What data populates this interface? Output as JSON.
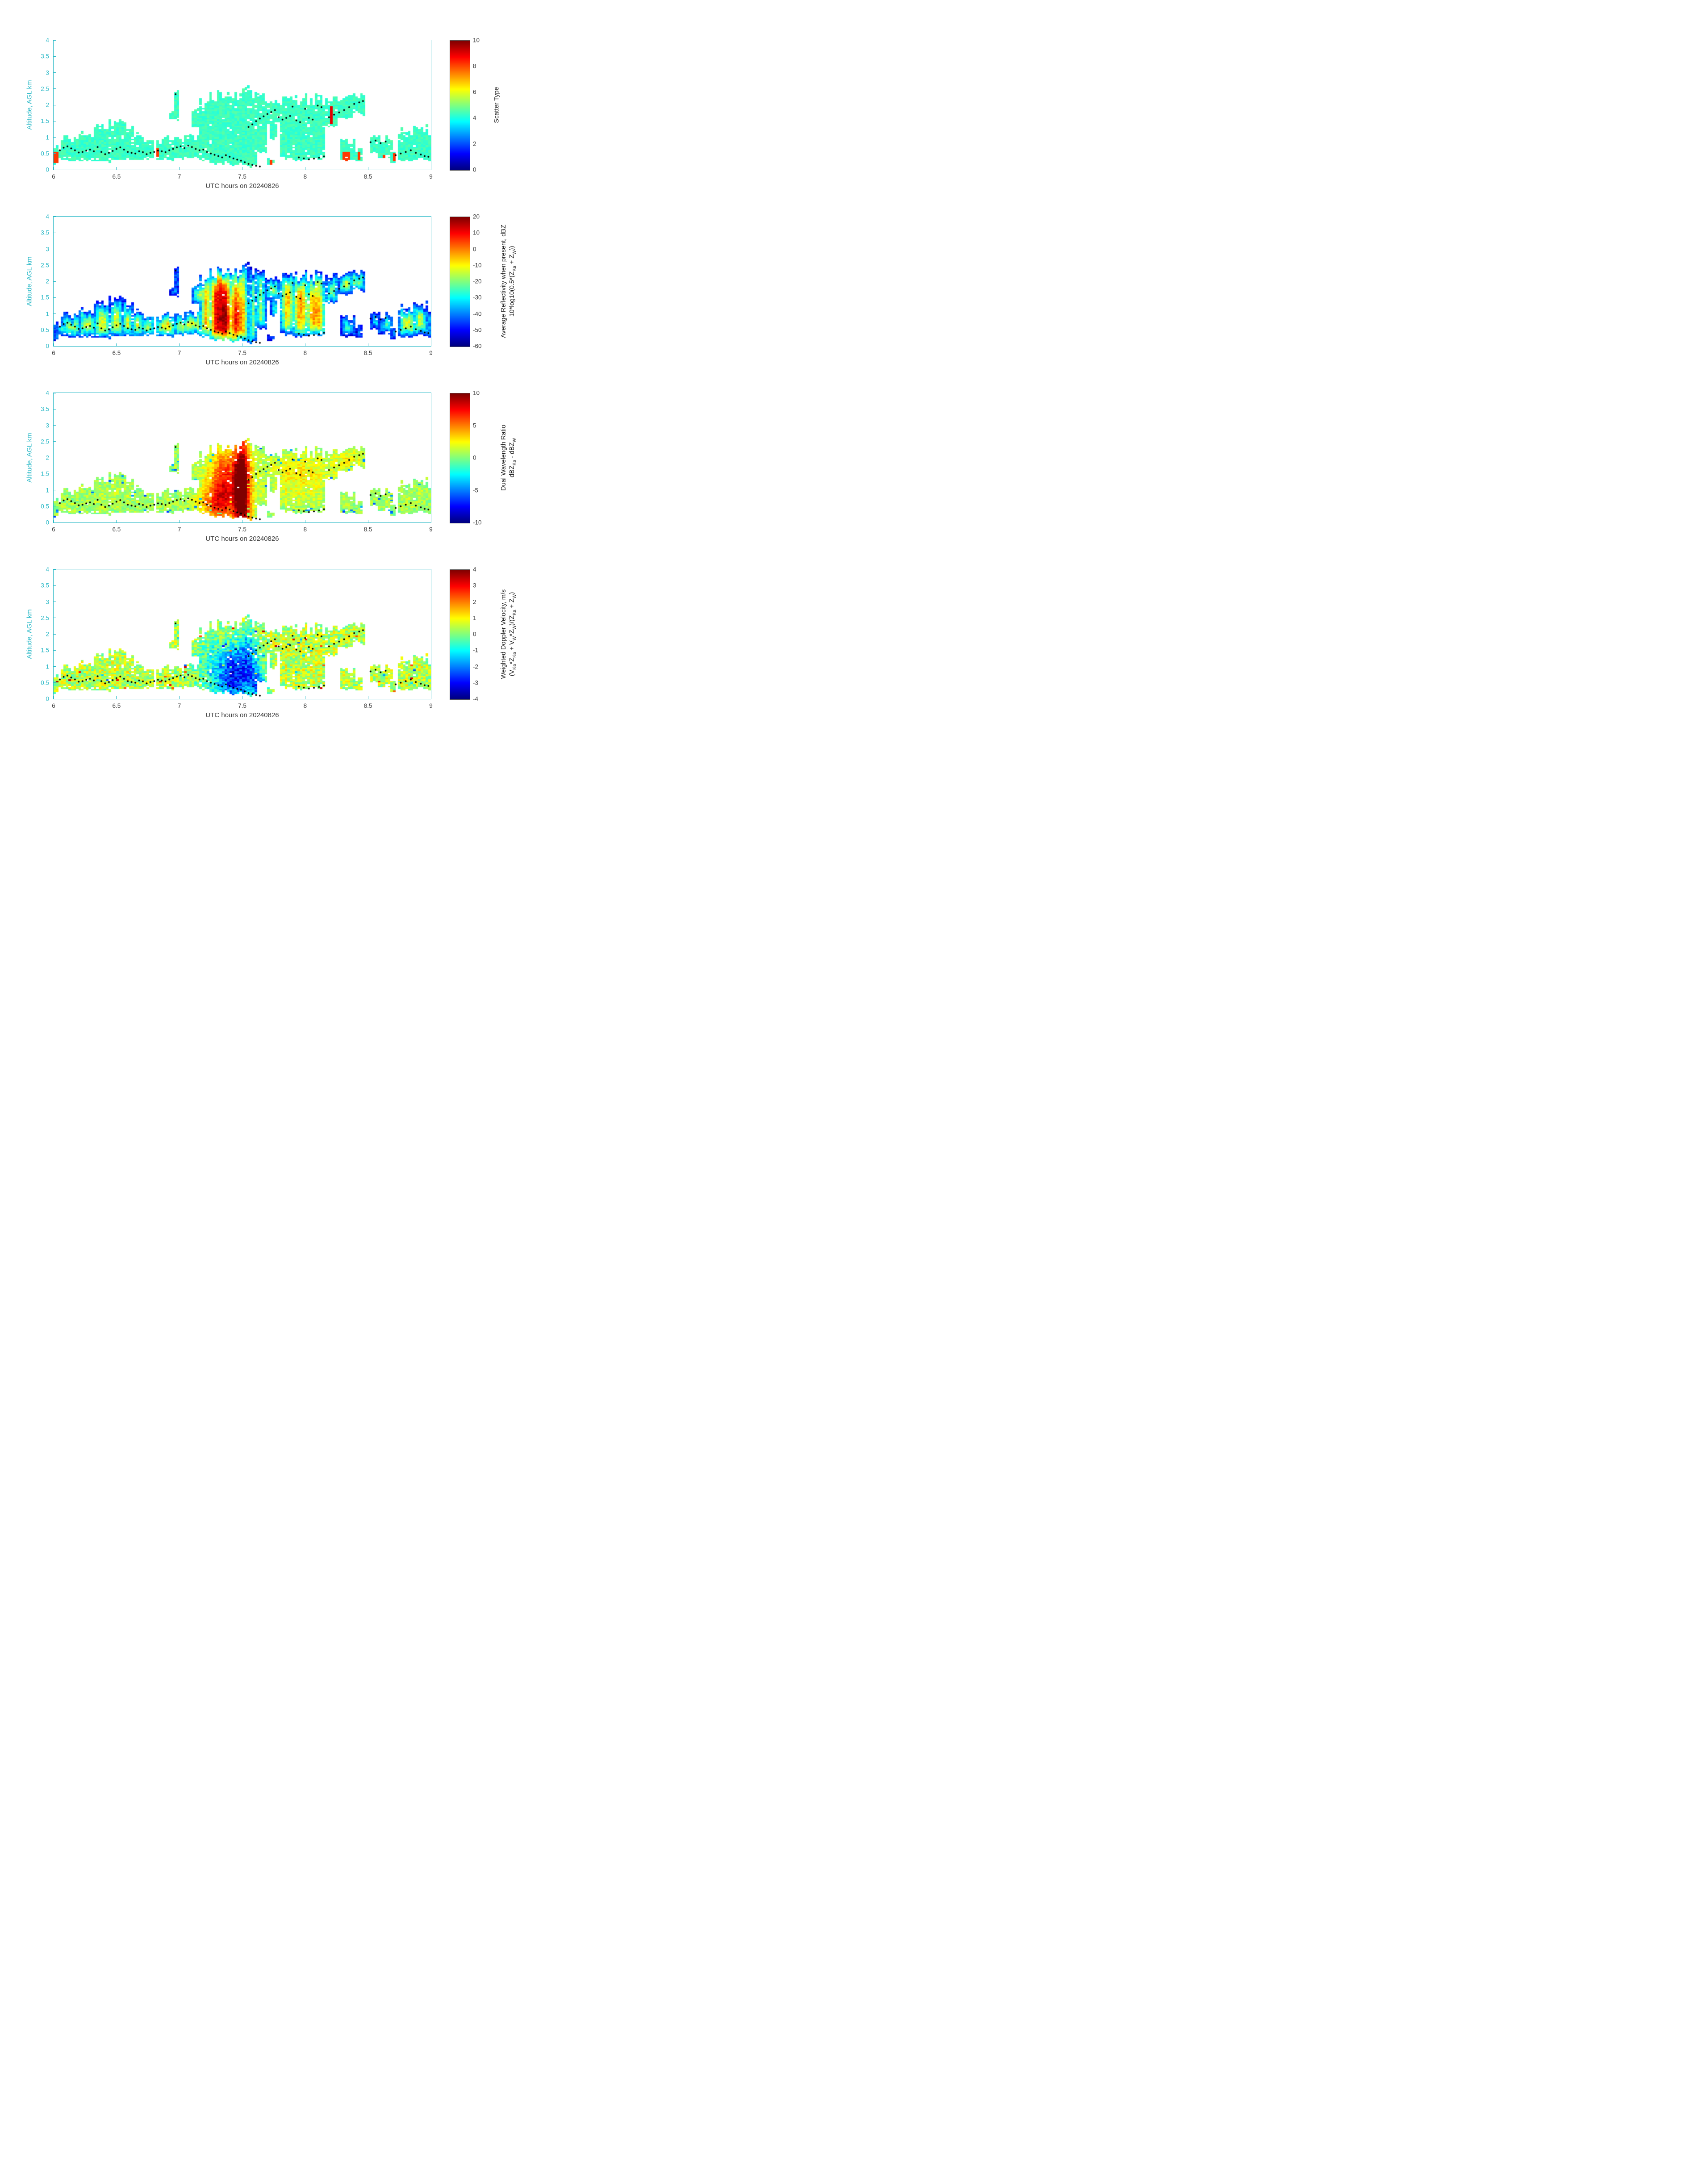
{
  "figure": {
    "xlabel": "UTC hours on 20240826",
    "ylabel": "Altitude, AGL km",
    "xlim": [
      6,
      9
    ],
    "ylim": [
      0,
      4
    ],
    "x_ticks": [
      6,
      6.5,
      7,
      7.5,
      8,
      8.5,
      9
    ],
    "x_tick_labels": [
      "6",
      "6.5",
      "7",
      "7.5",
      "8",
      "8.5",
      "9"
    ],
    "y_ticks": [
      0,
      0.5,
      1,
      1.5,
      2,
      2.5,
      3,
      3.5,
      4
    ],
    "y_tick_labels": [
      "0",
      "0.5",
      "1",
      "1.5",
      "2",
      "2.5",
      "3",
      "3.5",
      "4"
    ],
    "axis_color": "#2bb9c7",
    "x_text_color": "#3c3c3c",
    "dot_color": "#000000",
    "colormap": "jet",
    "grid": false
  },
  "chart_data": [
    {
      "type": "heatmap",
      "panel": 1,
      "colorbar": {
        "vmin": 0,
        "vmax": 10,
        "tick_values": [
          0,
          2,
          4,
          6,
          8,
          10
        ],
        "tick_labels": [
          "0",
          "2",
          "4",
          "6",
          "8",
          "10"
        ],
        "label_lines": [
          [
            {
              "t": "Scatter Type"
            }
          ]
        ]
      },
      "field": {
        "base": 4.35,
        "gain": 0.0,
        "noise": 0.28,
        "bumps": [],
        "rects": [
          {
            "t0": 6.005,
            "t1": 6.04,
            "z0": 0.2,
            "z1": 0.55,
            "v": 8.2
          },
          {
            "t0": 6.81,
            "t1": 6.835,
            "z0": 0.35,
            "z1": 0.65,
            "v": 8.2
          },
          {
            "t0": 7.715,
            "t1": 7.74,
            "z0": 0.15,
            "z1": 0.3,
            "v": 8.2
          },
          {
            "t0": 8.2,
            "t1": 8.225,
            "z0": 1.42,
            "z1": 1.95,
            "v": 9.0
          },
          {
            "t0": 8.305,
            "t1": 8.355,
            "z0": 0.27,
            "z1": 0.55,
            "v": 8.2
          },
          {
            "t0": 8.425,
            "t1": 8.445,
            "z0": 0.3,
            "z1": 0.55,
            "v": 8.2
          },
          {
            "t0": 8.625,
            "t1": 8.65,
            "z0": 0.25,
            "z1": 0.45,
            "v": 8.2
          },
          {
            "t0": 8.7,
            "t1": 8.72,
            "z0": 0.25,
            "z1": 0.5,
            "v": 8.2
          }
        ]
      }
    },
    {
      "type": "heatmap",
      "panel": 2,
      "colorbar": {
        "vmin": -60,
        "vmax": 20,
        "tick_values": [
          -60,
          -50,
          -40,
          -30,
          -20,
          -10,
          0,
          10,
          20
        ],
        "tick_labels": [
          "-60",
          "-50",
          "-40",
          "-30",
          "-20",
          "-10",
          "0",
          "10",
          "20"
        ],
        "label_lines": [
          [
            {
              "t": "Average Reflectivity when present, dBZ"
            }
          ],
          [
            {
              "t": "10*log10(0.5*(Z"
            },
            {
              "sub": "Ka"
            },
            {
              "t": " + Z"
            },
            {
              "sub": "W"
            },
            {
              "t": "))"
            }
          ]
        ]
      },
      "field": {
        "base": -52,
        "gain": 28,
        "noise": 5,
        "bumps": [
          {
            "t": 7.38,
            "z": 0.8,
            "st": 0.11,
            "sz": 0.7,
            "a": 38
          },
          {
            "t": 7.3,
            "z": 1.7,
            "st": 0.1,
            "sz": 0.45,
            "a": 18
          },
          {
            "t": 6.5,
            "z": 0.6,
            "st": 0.45,
            "sz": 0.33,
            "a": 12
          },
          {
            "t": 7.0,
            "z": 0.6,
            "st": 0.18,
            "sz": 0.3,
            "a": 9
          },
          {
            "t": 7.95,
            "z": 1.3,
            "st": 0.16,
            "sz": 0.55,
            "a": 20
          },
          {
            "t": 8.1,
            "z": 0.7,
            "st": 0.1,
            "sz": 0.45,
            "a": 12
          },
          {
            "t": 8.4,
            "z": 1.95,
            "st": 0.08,
            "sz": 0.25,
            "a": 13
          },
          {
            "t": 8.85,
            "z": 0.7,
            "st": 0.12,
            "sz": 0.35,
            "a": 11
          }
        ],
        "rects": []
      }
    },
    {
      "type": "heatmap",
      "panel": 3,
      "colorbar": {
        "vmin": -10,
        "vmax": 10,
        "tick_values": [
          -10,
          -5,
          0,
          5,
          10
        ],
        "tick_labels": [
          "-10",
          "-5",
          "0",
          "5",
          "10"
        ],
        "label_lines": [
          [
            {
              "t": "Dual Wavelength Ratio"
            }
          ],
          [
            {
              "t": "dBZ"
            },
            {
              "sub": "Ka"
            },
            {
              "t": " - dBZ"
            },
            {
              "sub": "W"
            }
          ]
        ]
      },
      "field": {
        "base": 0.4,
        "gain": 0.7,
        "noise": 1.2,
        "blue_specks": 5.5,
        "bumps": [
          {
            "t": 7.37,
            "z": 1.2,
            "st": 0.09,
            "sz": 0.75,
            "a": 6
          },
          {
            "t": 7.5,
            "z": 1.0,
            "st": 0.045,
            "sz": 1.1,
            "a": 11
          },
          {
            "t": 7.28,
            "z": 0.55,
            "st": 0.09,
            "sz": 0.4,
            "a": 3.5
          },
          {
            "t": 7.95,
            "z": 1.5,
            "st": 0.16,
            "sz": 0.5,
            "a": 1.8
          },
          {
            "t": 8.35,
            "z": 1.9,
            "st": 0.1,
            "sz": 0.3,
            "a": 1.5
          }
        ],
        "rects": []
      }
    },
    {
      "type": "heatmap",
      "panel": 4,
      "colorbar": {
        "vmin": -4,
        "vmax": 4,
        "tick_values": [
          -4,
          -3,
          -2,
          -1,
          0,
          1,
          2,
          3,
          4
        ],
        "tick_labels": [
          "-4",
          "-3",
          "-2",
          "-1",
          "0",
          "1",
          "2",
          "3",
          "4"
        ],
        "label_lines": [
          [
            {
              "t": "Weighted Doppler Velocity, m/s"
            }
          ],
          [
            {
              "t": "(V"
            },
            {
              "sub": "Ka"
            },
            {
              "t": "*Z"
            },
            {
              "sub": "Ka"
            },
            {
              "t": " + V"
            },
            {
              "sub": "W"
            },
            {
              "t": "*Z"
            },
            {
              "sub": "W"
            },
            {
              "t": ")/(Z"
            },
            {
              "sub": "Ka"
            },
            {
              "t": " + Z"
            },
            {
              "sub": "W"
            },
            {
              "t": ")"
            }
          ]
        ]
      },
      "field": {
        "base": 0.35,
        "gain": 0.25,
        "noise": 0.85,
        "speckle": 2.6,
        "bumps": [
          {
            "t": 7.45,
            "z": 0.7,
            "st": 0.1,
            "sz": 0.55,
            "a": -2.9
          },
          {
            "t": 7.55,
            "z": 1.5,
            "st": 0.06,
            "sz": 0.5,
            "a": -1.6
          },
          {
            "t": 7.28,
            "z": 1.0,
            "st": 0.13,
            "sz": 0.8,
            "a": -1.1
          },
          {
            "t": 7.62,
            "z": 0.45,
            "st": 0.05,
            "sz": 0.4,
            "a": -2.0
          }
        ],
        "rects": []
      }
    }
  ],
  "cloud": {
    "segments": [
      [
        6.005,
        6.04,
        0.2,
        0.58
      ],
      [
        6.03,
        6.1,
        0.35,
        0.75
      ],
      [
        6.07,
        6.22,
        0.28,
        0.92
      ],
      [
        6.2,
        6.34,
        0.28,
        1.08
      ],
      [
        6.32,
        6.46,
        0.25,
        1.32
      ],
      [
        6.44,
        6.56,
        0.3,
        1.45
      ],
      [
        6.54,
        6.64,
        0.3,
        1.38
      ],
      [
        6.62,
        6.72,
        0.32,
        1.02
      ],
      [
        6.7,
        6.8,
        0.35,
        0.92
      ],
      [
        6.82,
        6.97,
        0.3,
        0.95
      ],
      [
        6.93,
        7.0,
        1.55,
        1.78
      ],
      [
        6.955,
        7.005,
        1.8,
        2.38
      ],
      [
        6.97,
        7.12,
        0.35,
        0.92
      ],
      [
        7.05,
        7.18,
        0.38,
        1.02
      ],
      [
        7.1,
        7.23,
        1.28,
        1.88
      ],
      [
        7.16,
        7.26,
        0.3,
        2.02
      ],
      [
        7.24,
        7.42,
        0.18,
        2.28
      ],
      [
        7.4,
        7.56,
        0.14,
        2.36
      ],
      [
        7.55,
        7.63,
        0.1,
        2.28
      ],
      [
        7.6,
        7.7,
        0.55,
        2.22
      ],
      [
        7.68,
        7.8,
        1.42,
        2.15
      ],
      [
        7.73,
        7.79,
        0.95,
        1.45
      ],
      [
        7.71,
        7.76,
        0.14,
        0.32
      ],
      [
        7.8,
        7.92,
        0.35,
        2.1
      ],
      [
        7.9,
        8.03,
        0.28,
        2.16
      ],
      [
        8.01,
        8.17,
        0.32,
        2.2
      ],
      [
        8.16,
        8.27,
        1.35,
        2.12
      ],
      [
        8.26,
        8.38,
        1.58,
        2.2
      ],
      [
        8.29,
        8.41,
        0.28,
        0.86
      ],
      [
        8.36,
        8.48,
        1.7,
        2.26
      ],
      [
        8.41,
        8.46,
        0.28,
        0.58
      ],
      [
        8.52,
        8.6,
        0.52,
        1.06
      ],
      [
        8.58,
        8.7,
        0.38,
        0.96
      ],
      [
        8.68,
        8.73,
        0.22,
        0.5
      ],
      [
        8.74,
        8.89,
        0.28,
        1.22
      ],
      [
        8.86,
        8.98,
        0.32,
        1.26
      ],
      [
        8.95,
        9.005,
        0.28,
        0.95
      ]
    ],
    "dots": [
      [
        6.05,
        0.6
      ],
      [
        6.08,
        0.68
      ],
      [
        6.11,
        0.72
      ],
      [
        6.14,
        0.66
      ],
      [
        6.17,
        0.6
      ],
      [
        6.2,
        0.53
      ],
      [
        6.23,
        0.55
      ],
      [
        6.26,
        0.59
      ],
      [
        6.29,
        0.62
      ],
      [
        6.32,
        0.57
      ],
      [
        6.35,
        0.7
      ],
      [
        6.38,
        0.55
      ],
      [
        6.41,
        0.48
      ],
      [
        6.44,
        0.52
      ],
      [
        6.47,
        0.58
      ],
      [
        6.5,
        0.64
      ],
      [
        6.53,
        0.69
      ],
      [
        6.56,
        0.62
      ],
      [
        6.59,
        0.55
      ],
      [
        6.62,
        0.52
      ],
      [
        6.65,
        0.5
      ],
      [
        6.68,
        0.57
      ],
      [
        6.71,
        0.54
      ],
      [
        6.74,
        0.48
      ],
      [
        6.77,
        0.52
      ],
      [
        6.8,
        0.55
      ],
      [
        6.83,
        0.59
      ],
      [
        6.86,
        0.57
      ],
      [
        6.89,
        0.54
      ],
      [
        6.92,
        0.6
      ],
      [
        6.95,
        0.64
      ],
      [
        6.97,
        2.33
      ],
      [
        6.98,
        0.69
      ],
      [
        7.01,
        0.72
      ],
      [
        7.04,
        0.67
      ],
      [
        7.07,
        0.74
      ],
      [
        7.1,
        0.7
      ],
      [
        7.13,
        0.64
      ],
      [
        7.16,
        0.6
      ],
      [
        7.19,
        0.62
      ],
      [
        7.22,
        0.55
      ],
      [
        7.25,
        0.5
      ],
      [
        7.28,
        0.46
      ],
      [
        7.31,
        0.42
      ],
      [
        7.34,
        0.38
      ],
      [
        7.37,
        0.45
      ],
      [
        7.4,
        0.4
      ],
      [
        7.43,
        0.35
      ],
      [
        7.46,
        0.31
      ],
      [
        7.49,
        0.28
      ],
      [
        7.52,
        0.23
      ],
      [
        7.55,
        0.18
      ],
      [
        7.58,
        0.15
      ],
      [
        7.61,
        0.12
      ],
      [
        7.64,
        0.1
      ],
      [
        7.55,
        1.32
      ],
      [
        7.58,
        1.4
      ],
      [
        7.61,
        1.5
      ],
      [
        7.64,
        1.58
      ],
      [
        7.67,
        1.65
      ],
      [
        7.7,
        1.72
      ],
      [
        7.73,
        1.78
      ],
      [
        7.76,
        1.84
      ],
      [
        7.79,
        1.62
      ],
      [
        7.82,
        1.55
      ],
      [
        7.85,
        1.6
      ],
      [
        7.88,
        1.66
      ],
      [
        7.9,
        1.95
      ],
      [
        7.93,
        1.52
      ],
      [
        7.96,
        1.47
      ],
      [
        8.0,
        1.88
      ],
      [
        8.03,
        1.6
      ],
      [
        8.06,
        1.55
      ],
      [
        8.1,
        1.98
      ],
      [
        8.13,
        1.93
      ],
      [
        7.95,
        0.38
      ],
      [
        7.99,
        0.35
      ],
      [
        8.03,
        0.32
      ],
      [
        8.07,
        0.34
      ],
      [
        8.11,
        0.37
      ],
      [
        8.15,
        0.41
      ],
      [
        8.19,
        1.62
      ],
      [
        8.23,
        1.7
      ],
      [
        8.27,
        1.77
      ],
      [
        8.31,
        1.84
      ],
      [
        8.35,
        1.93
      ],
      [
        8.39,
        2.03
      ],
      [
        8.43,
        2.08
      ],
      [
        8.46,
        2.12
      ],
      [
        8.52,
        0.85
      ],
      [
        8.56,
        0.9
      ],
      [
        8.6,
        0.82
      ],
      [
        8.64,
        0.87
      ],
      [
        8.72,
        0.45
      ],
      [
        8.76,
        0.5
      ],
      [
        8.8,
        0.55
      ],
      [
        8.84,
        0.6
      ],
      [
        8.88,
        0.52
      ],
      [
        8.92,
        0.47
      ],
      [
        8.95,
        0.42
      ],
      [
        8.98,
        0.4
      ]
    ]
  }
}
